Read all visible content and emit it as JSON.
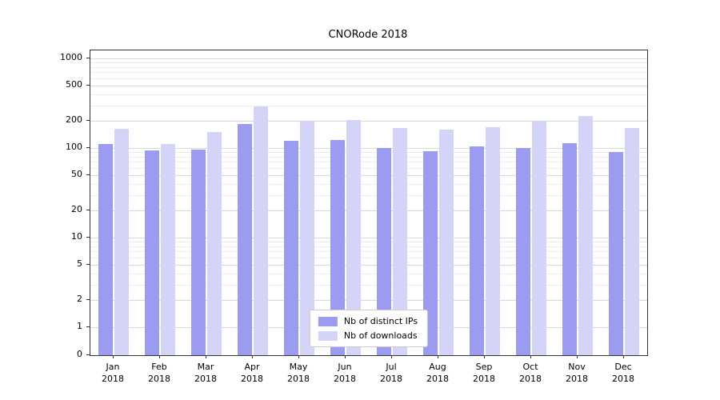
{
  "chart_data": {
    "type": "bar",
    "title": "CNORode 2018",
    "categories": [
      "Jan 2018",
      "Feb 2018",
      "Mar 2018",
      "Apr 2018",
      "May 2018",
      "Jun 2018",
      "Jul 2018",
      "Aug 2018",
      "Sep 2018",
      "Oct 2018",
      "Nov 2018",
      "Dec 2018"
    ],
    "series": [
      {
        "name": "Nb of distinct IPs",
        "color": "#9b9bef",
        "values": [
          110,
          95,
          96,
          185,
          120,
          122,
          100,
          93,
          105,
          100,
          113,
          90
        ]
      },
      {
        "name": "Nb of downloads",
        "color": "#d4d4f9",
        "values": [
          165,
          112,
          150,
          290,
          200,
          205,
          168,
          160,
          172,
          200,
          230,
          168
        ]
      }
    ],
    "xlabel": "",
    "ylabel": "",
    "yscale": "symlog",
    "yticks": [
      0,
      1,
      2,
      5,
      10,
      20,
      50,
      100,
      200,
      500,
      1000
    ],
    "ylim": [
      0,
      1230
    ],
    "grid": true,
    "grid_which": "both",
    "legend_position": "lower center"
  }
}
